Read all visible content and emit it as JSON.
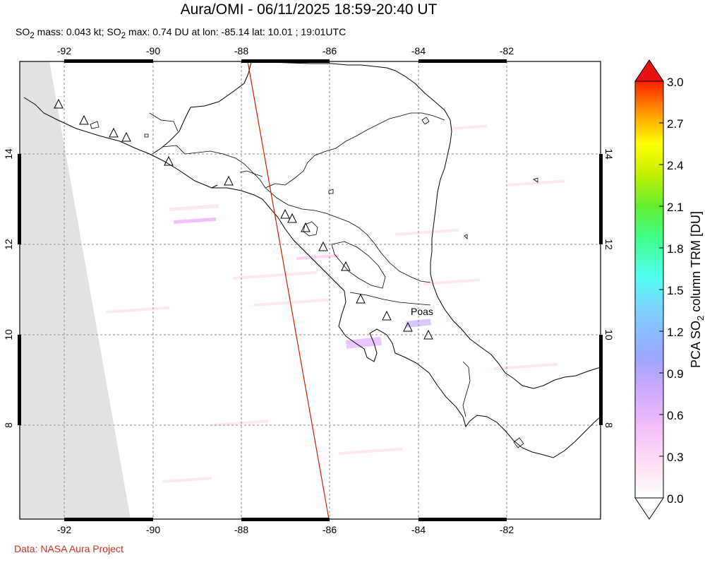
{
  "header": {
    "title": "Aura/OMI - 06/11/2025 18:59-20:40 UT",
    "subtitle": {
      "p1": "SO",
      "s1": "2",
      "p2": " mass: 0.043 kt; SO",
      "s2": "2",
      "p3": " max: 0.74 DU at lon: -85.14 lat: 10.01 ; 19:01UTC"
    }
  },
  "footer": {
    "credit": "Data: NASA Aura Project"
  },
  "map": {
    "lon_ticks": [
      "-92",
      "-90",
      "-88",
      "-86",
      "-84",
      "-82"
    ],
    "lat_ticks": [
      "14",
      "12",
      "10",
      "8"
    ],
    "volcano_label": "Poas"
  },
  "colorbar": {
    "ticks": [
      "3.0",
      "2.7",
      "2.4",
      "2.1",
      "1.8",
      "1.5",
      "1.2",
      "0.9",
      "0.6",
      "0.3",
      "0.0"
    ],
    "label_parts": {
      "a": "PCA SO",
      "sub": "2",
      "b": " column TRM [DU]"
    },
    "colors": [
      "#ffffff",
      "#ffd8f4",
      "#f0b0ff",
      "#b0a0ff",
      "#7fb8ff",
      "#50ffff",
      "#40ff90",
      "#80f020",
      "#ffff00",
      "#ffb000",
      "#ff4000",
      "#e81010"
    ]
  }
}
